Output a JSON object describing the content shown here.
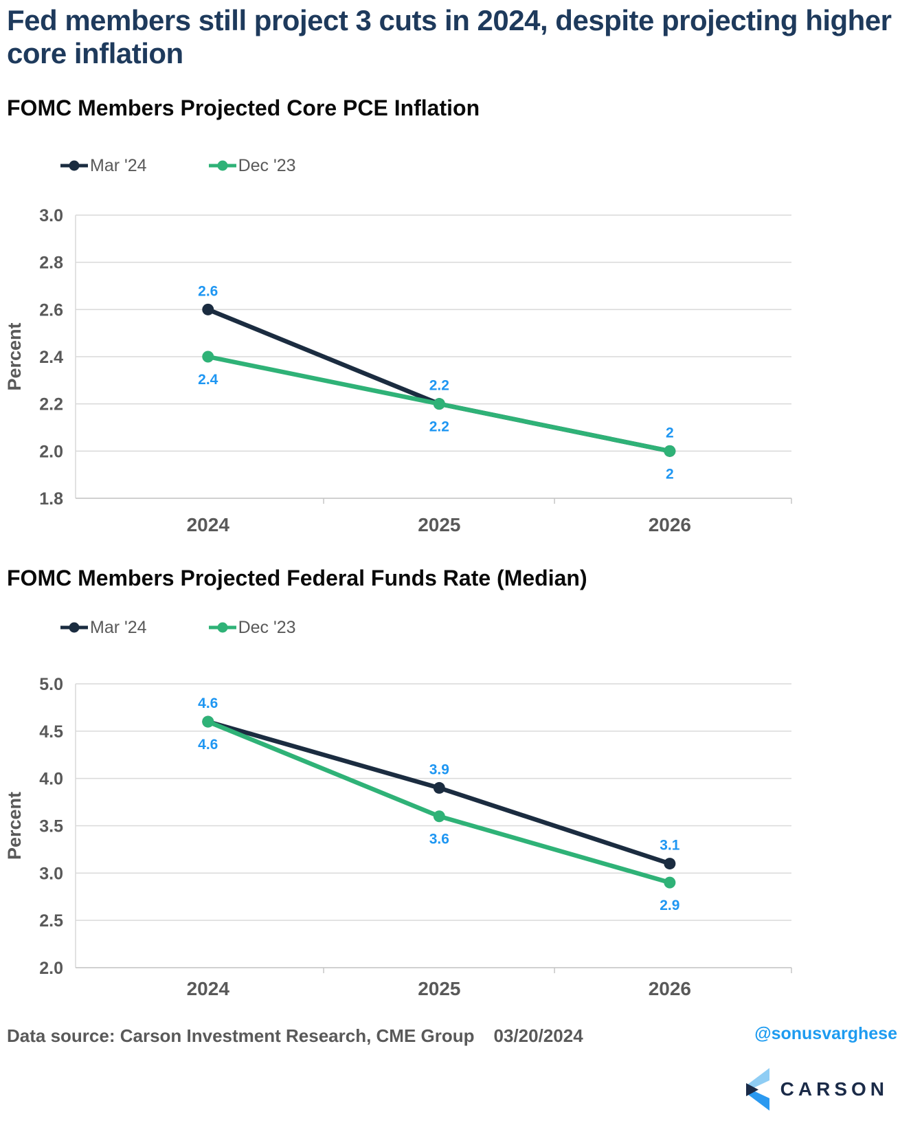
{
  "page_title": "Fed members still project 3 cuts in 2024, despite projecting higher core inflation",
  "chart_data": [
    {
      "type": "line",
      "title": "FOMC Members Projected Core PCE Inflation",
      "categories": [
        "2024",
        "2025",
        "2026"
      ],
      "series": [
        {
          "name": "Mar '24",
          "color": "#1b2c40",
          "values": [
            2.6,
            2.2,
            2.0
          ],
          "point_labels": [
            "2.6",
            "2.2",
            "2"
          ],
          "labels_side": "above"
        },
        {
          "name": "Dec '23",
          "color": "#2fb277",
          "values": [
            2.4,
            2.2,
            2.0
          ],
          "point_labels": [
            "2.4",
            "2.2",
            "2"
          ],
          "labels_side": "below"
        }
      ],
      "xlabel": "",
      "ylabel": "Percent",
      "ylim": [
        1.8,
        3.0
      ],
      "yticks": [
        3.0,
        2.8,
        2.6,
        2.4,
        2.2,
        2.0,
        1.8
      ],
      "ytick_labels": [
        "3.0",
        "2.8",
        "2.6",
        "2.4",
        "2.2",
        "2.0",
        "1.8"
      ],
      "grid": true,
      "legend_position": "top-left",
      "point_label_color": "#1e96f2"
    },
    {
      "type": "line",
      "title": "FOMC Members Projected Federal Funds Rate (Median)",
      "categories": [
        "2024",
        "2025",
        "2026"
      ],
      "series": [
        {
          "name": "Mar '24",
          "color": "#1b2c40",
          "values": [
            4.6,
            3.9,
            3.1
          ],
          "point_labels": [
            "4.6",
            "3.9",
            "3.1"
          ],
          "labels_side": "above"
        },
        {
          "name": "Dec '23",
          "color": "#2fb277",
          "values": [
            4.6,
            3.6,
            2.9
          ],
          "point_labels": [
            "4.6",
            "3.6",
            "2.9"
          ],
          "labels_side": "below"
        }
      ],
      "xlabel": "",
      "ylabel": "Percent",
      "ylim": [
        2.0,
        5.0
      ],
      "yticks": [
        5.0,
        4.5,
        4.0,
        3.5,
        3.0,
        2.5,
        2.0
      ],
      "ytick_labels": [
        "5.0",
        "4.5",
        "4.0",
        "3.5",
        "3.0",
        "2.5",
        "2.0"
      ],
      "grid": true,
      "legend_position": "top-left",
      "point_label_color": "#1e96f2"
    }
  ],
  "footer": {
    "data_source": "Data source: Carson Investment Research, CME Group",
    "date": "03/20/2024",
    "handle": "@sonusvarghese",
    "brand_name": "CARSON"
  },
  "colors": {
    "title_navy": "#1e3a5c",
    "series_mar24_navy": "#1b2c40",
    "series_dec23_green": "#2fb277",
    "data_label_blue": "#1e96f2",
    "axis_text_gray": "#595959",
    "gridline_gray": "#d9d9d9",
    "handle_blue": "#1d9bf0",
    "brand_navy": "#1b2b48",
    "brand_light_blue": "#8fcdf4",
    "brand_blue": "#2b99f0"
  }
}
